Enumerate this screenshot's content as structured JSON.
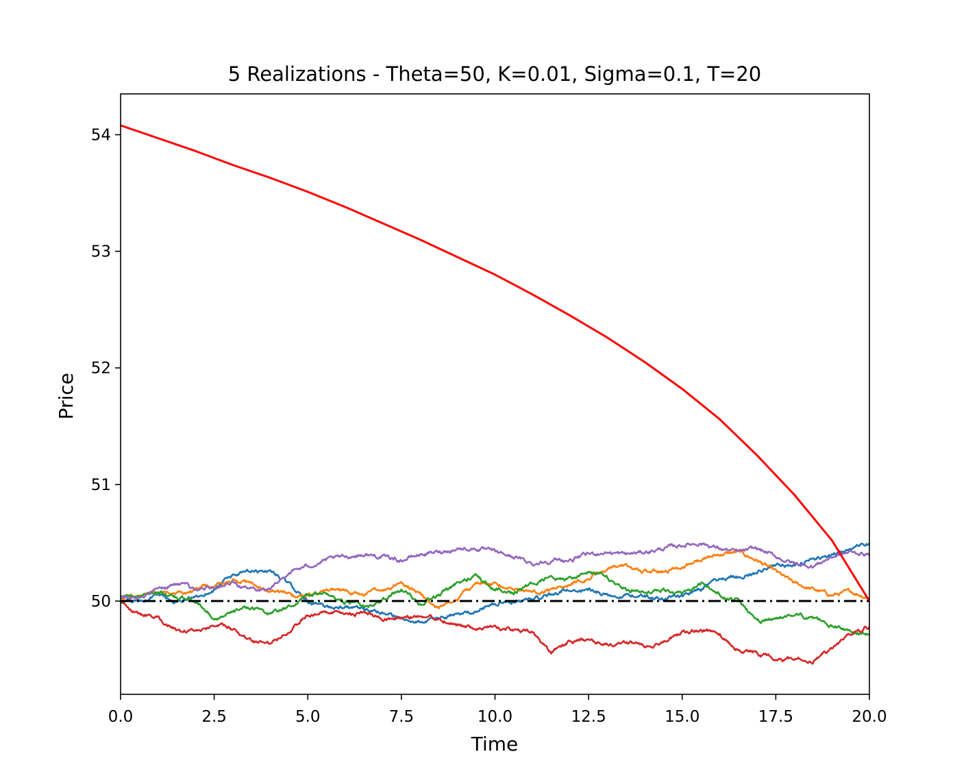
{
  "chart_data": {
    "type": "line",
    "title": "5 Realizations - Theta=50, K=0.01, Sigma=0.1, T=20",
    "xlabel": "Time",
    "ylabel": "Price",
    "xlim": [
      0,
      20
    ],
    "ylim": [
      49.2,
      54.35
    ],
    "xticks": [
      0,
      2.5,
      5,
      7.5,
      10,
      12.5,
      15,
      17.5,
      20
    ],
    "xtick_labels": [
      "0.0",
      "2.5",
      "5.0",
      "7.5",
      "10.0",
      "12.5",
      "15.0",
      "17.5",
      "20.0"
    ],
    "yticks": [
      50,
      51,
      52,
      53,
      54
    ],
    "ytick_labels": [
      "50",
      "51",
      "52",
      "53",
      "54"
    ],
    "grid": false,
    "legend": "none",
    "theta_line": {
      "value": 50,
      "color": "#000000",
      "style": "dash-dot"
    },
    "series": [
      {
        "color": "#1f77b4",
        "style": "noisy",
        "x": [
          0,
          0.5,
          1,
          1.5,
          2,
          2.5,
          3,
          3.5,
          4,
          4.5,
          5,
          5.5,
          6,
          6.5,
          7,
          7.5,
          8,
          8.5,
          9,
          9.5,
          10,
          10.5,
          11,
          11.5,
          12,
          12.5,
          13,
          13.5,
          14,
          14.5,
          15,
          15.5,
          16,
          16.5,
          17,
          17.5,
          18,
          18.5,
          19,
          19.5,
          20
        ],
        "y": [
          50.0,
          50.0,
          50.05,
          50.0,
          50.02,
          50.1,
          50.22,
          50.25,
          50.26,
          50.15,
          50.0,
          49.95,
          49.95,
          49.92,
          49.9,
          49.85,
          49.82,
          49.85,
          49.88,
          49.92,
          49.98,
          50.0,
          50.02,
          50.05,
          50.1,
          50.1,
          50.05,
          50.05,
          50.05,
          50.02,
          50.05,
          50.1,
          50.2,
          50.2,
          50.25,
          50.32,
          50.3,
          50.35,
          50.4,
          50.45,
          50.5
        ]
      },
      {
        "color": "#ff7f0e",
        "style": "noisy",
        "x": [
          0,
          0.5,
          1,
          1.5,
          2,
          2.5,
          3,
          3.5,
          4,
          4.5,
          5,
          5.5,
          6,
          6.5,
          7,
          7.5,
          8,
          8.5,
          9,
          9.5,
          10,
          10.5,
          11,
          11.5,
          12,
          12.5,
          13,
          13.5,
          14,
          14.5,
          15,
          15.5,
          16,
          16.5,
          17,
          17.5,
          18,
          18.5,
          19,
          19.5,
          20
        ],
        "y": [
          50.02,
          50.05,
          50.08,
          50.05,
          50.1,
          50.15,
          50.18,
          50.15,
          50.08,
          50.05,
          50.05,
          50.1,
          50.08,
          50.05,
          50.1,
          50.15,
          50.05,
          49.95,
          50.02,
          50.15,
          50.15,
          50.1,
          50.08,
          50.1,
          50.15,
          50.2,
          50.28,
          50.3,
          50.25,
          50.25,
          50.3,
          50.35,
          50.4,
          50.42,
          50.35,
          50.25,
          50.15,
          50.1,
          50.05,
          50.08,
          50.03
        ]
      },
      {
        "color": "#2ca02c",
        "style": "noisy",
        "x": [
          0,
          0.5,
          1,
          1.5,
          2,
          2.5,
          3,
          3.5,
          4,
          4.5,
          5,
          5.5,
          6,
          6.5,
          7,
          7.5,
          8,
          8.5,
          9,
          9.5,
          10,
          10.5,
          11,
          11.5,
          12,
          12.5,
          13,
          13.5,
          14,
          14.5,
          15,
          15.5,
          16,
          16.5,
          17,
          17.5,
          18,
          18.5,
          19,
          19.5,
          20
        ],
        "y": [
          50.02,
          50.05,
          50.08,
          50.03,
          50.0,
          49.85,
          49.9,
          49.95,
          49.9,
          49.95,
          50.05,
          50.05,
          50.0,
          49.95,
          50.0,
          50.1,
          49.98,
          50.05,
          50.15,
          50.22,
          50.1,
          50.08,
          50.15,
          50.2,
          50.18,
          50.25,
          50.2,
          50.1,
          50.08,
          50.1,
          50.05,
          50.15,
          50.05,
          50.0,
          49.82,
          49.85,
          49.9,
          49.85,
          49.8,
          49.75,
          49.72
        ]
      },
      {
        "color": "#d62728",
        "style": "noisy",
        "x": [
          0,
          0.5,
          1,
          1.5,
          2,
          2.5,
          3,
          3.5,
          4,
          4.5,
          5,
          5.5,
          6,
          6.5,
          7,
          7.5,
          8,
          8.5,
          9,
          9.5,
          10,
          10.5,
          11,
          11.5,
          12,
          12.5,
          13,
          13.5,
          14,
          14.5,
          15,
          15.5,
          16,
          16.5,
          17,
          17.5,
          18,
          18.5,
          19,
          19.5,
          20
        ],
        "y": [
          50.0,
          49.88,
          49.85,
          49.75,
          49.75,
          49.8,
          49.75,
          49.65,
          49.65,
          49.75,
          49.88,
          49.9,
          49.88,
          49.9,
          49.85,
          49.85,
          49.88,
          49.85,
          49.8,
          49.75,
          49.78,
          49.75,
          49.72,
          49.55,
          49.65,
          49.68,
          49.62,
          49.65,
          49.62,
          49.65,
          49.72,
          49.75,
          49.72,
          49.58,
          49.55,
          49.5,
          49.5,
          49.48,
          49.6,
          49.72,
          49.78
        ]
      },
      {
        "color": "#9467bd",
        "style": "noisy",
        "x": [
          0,
          0.5,
          1,
          1.5,
          2,
          2.5,
          3,
          3.5,
          4,
          4.5,
          5,
          5.5,
          6,
          6.5,
          7,
          7.5,
          8,
          8.5,
          9,
          9.5,
          10,
          10.5,
          11,
          11.5,
          12,
          12.5,
          13,
          13.5,
          14,
          14.5,
          15,
          15.5,
          16,
          16.5,
          17,
          17.5,
          18,
          18.5,
          19,
          19.5,
          20
        ],
        "y": [
          50.05,
          50.02,
          50.1,
          50.15,
          50.1,
          50.12,
          50.15,
          50.1,
          50.1,
          50.25,
          50.3,
          50.35,
          50.38,
          50.4,
          50.38,
          50.35,
          50.4,
          50.42,
          50.45,
          50.45,
          50.42,
          50.38,
          50.32,
          50.35,
          50.35,
          50.4,
          50.42,
          50.4,
          50.42,
          50.45,
          50.48,
          50.5,
          50.45,
          50.42,
          50.45,
          50.38,
          50.32,
          50.3,
          50.38,
          50.42,
          50.4
        ]
      },
      {
        "color": "#ff0000",
        "style": "smooth",
        "x": [
          0,
          1,
          2,
          3,
          4,
          5,
          6,
          7,
          8,
          9,
          10,
          11,
          12,
          13,
          14,
          15,
          16,
          17,
          18,
          19,
          20
        ],
        "y": [
          54.08,
          53.97,
          53.86,
          53.74,
          53.63,
          53.51,
          53.38,
          53.24,
          53.1,
          52.95,
          52.8,
          52.63,
          52.45,
          52.26,
          52.05,
          51.82,
          51.56,
          51.25,
          50.91,
          50.52,
          50.0
        ]
      }
    ]
  }
}
